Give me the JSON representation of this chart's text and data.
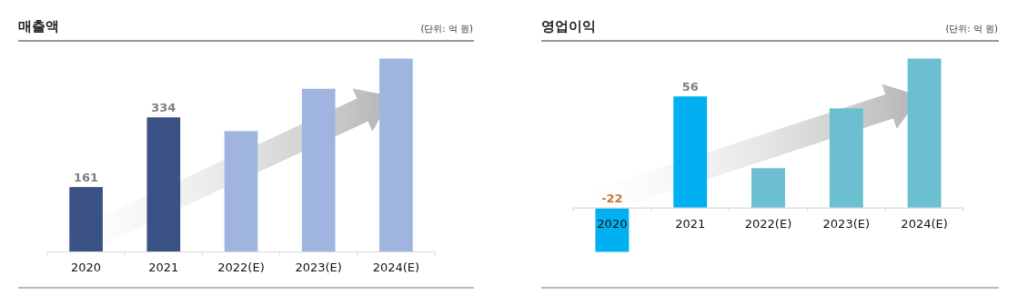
{
  "chart_data": [
    {
      "type": "bar",
      "title": "매출액",
      "subtitle": "(단위: 억 원)",
      "categories": [
        "2020",
        "2021",
        "2022(E)",
        "2023(E)",
        "2024(E)"
      ],
      "values": [
        161,
        334,
        300,
        405,
        480
      ],
      "colors": [
        "#3a5184",
        "#3a5184",
        "#9fb4df",
        "#9fb4df",
        "#9fb4df"
      ],
      "value_labels": [
        "161",
        "334",
        null,
        null,
        null
      ]
    },
    {
      "type": "bar",
      "title": "영업이익",
      "subtitle": "(단위: 억 원)",
      "categories": [
        "2020",
        "2021",
        "2022(E)",
        "2023(E)",
        "2024(E)"
      ],
      "values": [
        -22,
        56,
        20,
        50,
        75
      ],
      "colors": [
        "#00b0f0",
        "#00b0f0",
        "#6bbfd0",
        "#6bbfd0",
        "#6bbfd0"
      ],
      "value_labels": [
        "-22",
        "56",
        null,
        null,
        null
      ]
    }
  ]
}
